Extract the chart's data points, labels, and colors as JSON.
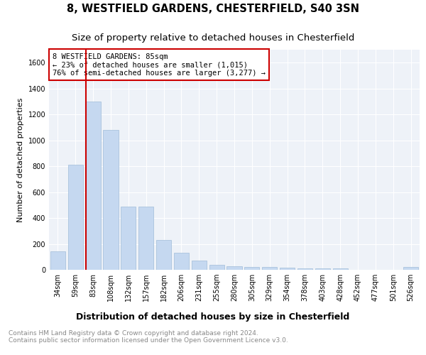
{
  "title": "8, WESTFIELD GARDENS, CHESTERFIELD, S40 3SN",
  "subtitle": "Size of property relative to detached houses in Chesterfield",
  "xlabel": "Distribution of detached houses by size in Chesterfield",
  "ylabel": "Number of detached properties",
  "categories": [
    "34sqm",
    "59sqm",
    "83sqm",
    "108sqm",
    "132sqm",
    "157sqm",
    "182sqm",
    "206sqm",
    "231sqm",
    "255sqm",
    "280sqm",
    "305sqm",
    "329sqm",
    "354sqm",
    "378sqm",
    "403sqm",
    "428sqm",
    "452sqm",
    "477sqm",
    "501sqm",
    "526sqm"
  ],
  "values": [
    140,
    810,
    1300,
    1080,
    490,
    490,
    230,
    130,
    70,
    40,
    25,
    20,
    20,
    15,
    10,
    10,
    10,
    0,
    0,
    0,
    20
  ],
  "bar_color": "#c5d8f0",
  "bar_edge_color": "#a0bcd8",
  "vline_index": 2,
  "vline_color": "#cc0000",
  "annotation_box_text": "8 WESTFIELD GARDENS: 85sqm\n← 23% of detached houses are smaller (1,015)\n76% of semi-detached houses are larger (3,277) →",
  "annotation_box_color": "#cc0000",
  "ylim": [
    0,
    1700
  ],
  "yticks": [
    0,
    200,
    400,
    600,
    800,
    1000,
    1200,
    1400,
    1600
  ],
  "background_color": "#eef2f8",
  "grid_color": "#ffffff",
  "footer_line1": "Contains HM Land Registry data © Crown copyright and database right 2024.",
  "footer_line2": "Contains public sector information licensed under the Open Government Licence v3.0.",
  "title_fontsize": 10.5,
  "subtitle_fontsize": 9.5,
  "xlabel_fontsize": 9,
  "ylabel_fontsize": 8,
  "tick_fontsize": 7,
  "annotation_fontsize": 7.5,
  "footer_fontsize": 6.5
}
